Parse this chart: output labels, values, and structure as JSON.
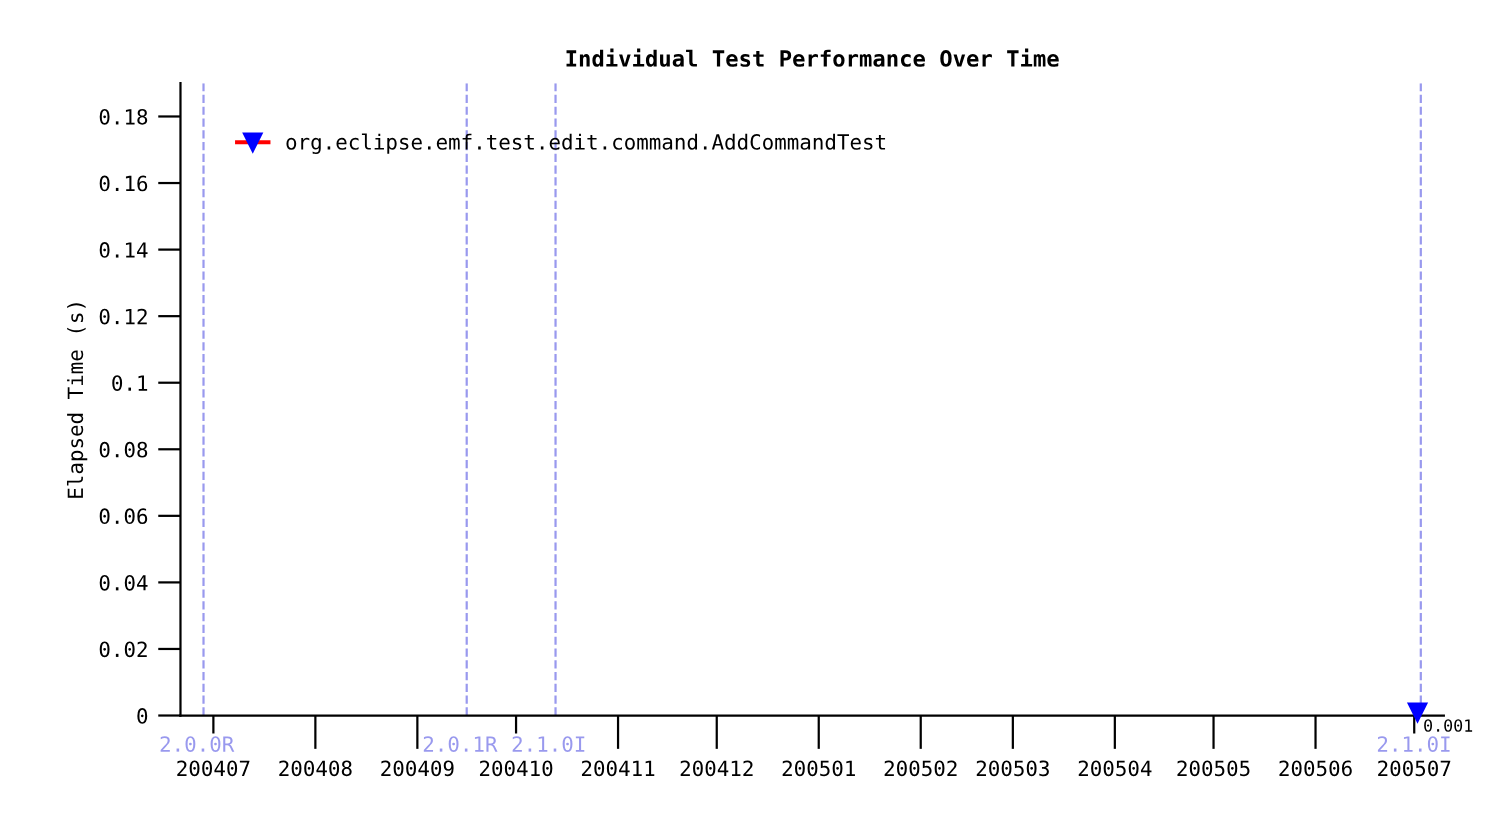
{
  "chart_data": {
    "type": "line",
    "title": "Individual Test Performance Over Time",
    "ylabel": "Elapsed Time (s)",
    "series": [
      {
        "name": "org.eclipse.emf.test.edit.command.AddCommandTest",
        "color": "#0000ff",
        "x": [
          "2005-07-02"
        ],
        "values": [
          0.001
        ],
        "value_labels": [
          "0.001"
        ]
      }
    ],
    "xlim": [
      "2004-06-21",
      "2005-07-10"
    ],
    "xticks": [
      {
        "value": "2004-07-01",
        "label": "200407"
      },
      {
        "value": "2004-08-01",
        "label": "200408"
      },
      {
        "value": "2004-09-01",
        "label": "200409"
      },
      {
        "value": "2004-10-01",
        "label": "200410"
      },
      {
        "value": "2004-11-01",
        "label": "200411"
      },
      {
        "value": "2004-12-01",
        "label": "200412"
      },
      {
        "value": "2005-01-01",
        "label": "200501"
      },
      {
        "value": "2005-02-01",
        "label": "200502"
      },
      {
        "value": "2005-03-01",
        "label": "200503"
      },
      {
        "value": "2005-04-01",
        "label": "200504"
      },
      {
        "value": "2005-05-01",
        "label": "200505"
      },
      {
        "value": "2005-06-01",
        "label": "200506"
      },
      {
        "value": "2005-07-01",
        "label": "200507"
      }
    ],
    "ylim": [
      0,
      0.19
    ],
    "yticks": [
      0,
      0.02,
      0.04,
      0.06,
      0.08,
      0.1,
      0.12,
      0.14,
      0.16,
      0.18
    ],
    "ref_lines": [
      {
        "axis": "x",
        "value": "2004-06-28",
        "label": "2.0.0R",
        "color": "#9999ee",
        "line_style": "dashed"
      },
      {
        "axis": "x",
        "value": "2004-09-16",
        "label": "2.0.1R",
        "color": "#9999ee",
        "line_style": "dashed"
      },
      {
        "axis": "x",
        "value": "2004-10-13",
        "label": "2.1.0I",
        "color": "#9999ee",
        "line_style": "dashed"
      },
      {
        "axis": "x",
        "value": "2005-07-03",
        "label": "2.1.0I",
        "color": "#9999ee",
        "line_style": "dashed"
      }
    ],
    "marker": "triangle_down",
    "grid": false,
    "legend": "top left"
  }
}
